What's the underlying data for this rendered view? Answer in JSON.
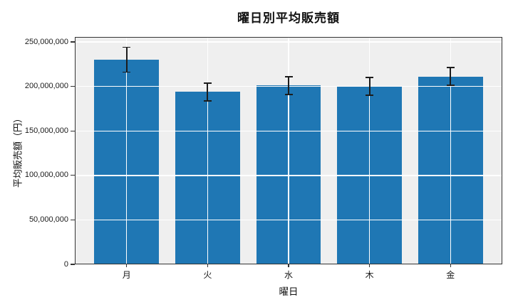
{
  "chart_data": {
    "type": "bar",
    "title": "曜日別平均販売額",
    "xlabel": "曜日",
    "ylabel": "平均販売額（円）",
    "categories": [
      "月",
      "火",
      "水",
      "木",
      "金"
    ],
    "values": [
      230000000,
      194000000,
      201000000,
      200000000,
      211000000
    ],
    "errors": [
      14000000,
      10000000,
      10000000,
      10000000,
      10000000
    ],
    "ylim": [
      0,
      255600000
    ],
    "y_ticks": [
      {
        "value": 0,
        "label": "0"
      },
      {
        "value": 50000000,
        "label": "50,000,000"
      },
      {
        "value": 100000000,
        "label": "100,000,000"
      },
      {
        "value": 150000000,
        "label": "150,000,000"
      },
      {
        "value": 200000000,
        "label": "200,000,000"
      },
      {
        "value": 250000000,
        "label": "250,000,000"
      }
    ],
    "grid": true,
    "legend_position": "none",
    "colors": {
      "bar": "#1f77b4",
      "plot_background": "#efefef",
      "figure_background": "#ffffff",
      "grid": "#ffffff",
      "error_bar": "#1c1c1c",
      "spine": "#333333",
      "tick": "#333333",
      "text": "#1a1a1a"
    }
  }
}
